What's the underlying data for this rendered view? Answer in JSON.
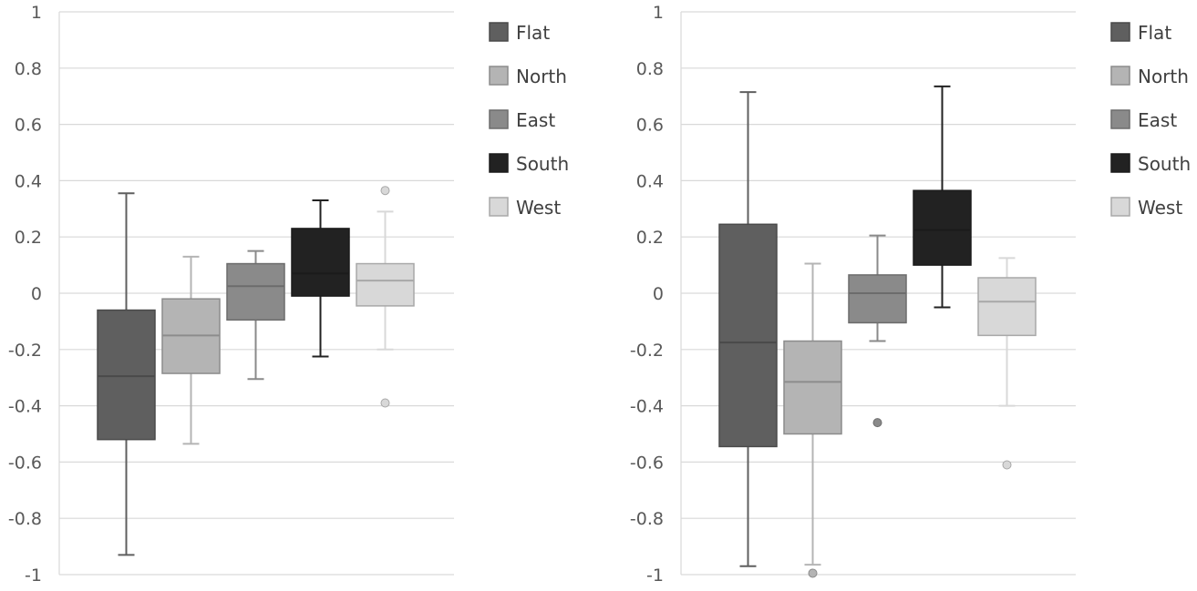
{
  "chart_data": [
    {
      "type": "boxplot",
      "ylim": [
        -1,
        1
      ],
      "yticks": [
        "1",
        "0.8",
        "0.6",
        "0.4",
        "0.2",
        "0",
        "-0.2",
        "-0.4",
        "-0.6",
        "-0.8",
        "-1"
      ],
      "ytick_values": [
        1,
        0.8,
        0.6,
        0.4,
        0.2,
        0,
        -0.2,
        -0.4,
        -0.6,
        -0.8,
        -1
      ],
      "grid": true,
      "legend_position": "right",
      "series": [
        {
          "name": "Flat",
          "color": "#5f5f5f",
          "min": -0.93,
          "q1": -0.52,
          "median": -0.295,
          "q3": -0.06,
          "max": 0.355,
          "outliers": []
        },
        {
          "name": "North",
          "color": "#b4b4b4",
          "min": -0.535,
          "q1": -0.285,
          "median": -0.15,
          "q3": -0.02,
          "max": 0.13,
          "outliers": []
        },
        {
          "name": "East",
          "color": "#8a8a8a",
          "min": -0.305,
          "q1": -0.095,
          "median": 0.025,
          "q3": 0.105,
          "max": 0.15,
          "outliers": []
        },
        {
          "name": "South",
          "color": "#222222",
          "min": -0.225,
          "q1": -0.01,
          "median": 0.07,
          "q3": 0.23,
          "max": 0.33,
          "outliers": []
        },
        {
          "name": "West",
          "color": "#d8d8d8",
          "min": -0.2,
          "q1": -0.045,
          "median": 0.045,
          "q3": 0.105,
          "max": 0.29,
          "outliers": [
            0.365,
            -0.39
          ]
        }
      ]
    },
    {
      "type": "boxplot",
      "ylim": [
        -1,
        1
      ],
      "yticks": [
        "1",
        "0.8",
        "0.6",
        "0.4",
        "0.2",
        "0",
        "-0.2",
        "-0.4",
        "-0.6",
        "-0.8",
        "-1"
      ],
      "ytick_values": [
        1,
        0.8,
        0.6,
        0.4,
        0.2,
        0,
        -0.2,
        -0.4,
        -0.6,
        -0.8,
        -1
      ],
      "grid": true,
      "legend_position": "right",
      "series": [
        {
          "name": "Flat",
          "color": "#5f5f5f",
          "min": -0.97,
          "q1": -0.545,
          "median": -0.175,
          "q3": 0.245,
          "max": 0.715,
          "outliers": []
        },
        {
          "name": "North",
          "color": "#b4b4b4",
          "min": -0.965,
          "q1": -0.5,
          "median": -0.315,
          "q3": -0.17,
          "max": 0.105,
          "outliers": [
            -0.995
          ]
        },
        {
          "name": "East",
          "color": "#8a8a8a",
          "min": -0.17,
          "q1": -0.105,
          "median": 0.0,
          "q3": 0.065,
          "max": 0.205,
          "outliers": [
            -0.46
          ]
        },
        {
          "name": "South",
          "color": "#222222",
          "min": -0.05,
          "q1": 0.1,
          "median": 0.225,
          "q3": 0.365,
          "max": 0.735,
          "outliers": []
        },
        {
          "name": "West",
          "color": "#d8d8d8",
          "min": -0.4,
          "q1": -0.15,
          "median": -0.03,
          "q3": 0.055,
          "max": 0.125,
          "outliers": [
            -0.61
          ]
        }
      ]
    }
  ]
}
